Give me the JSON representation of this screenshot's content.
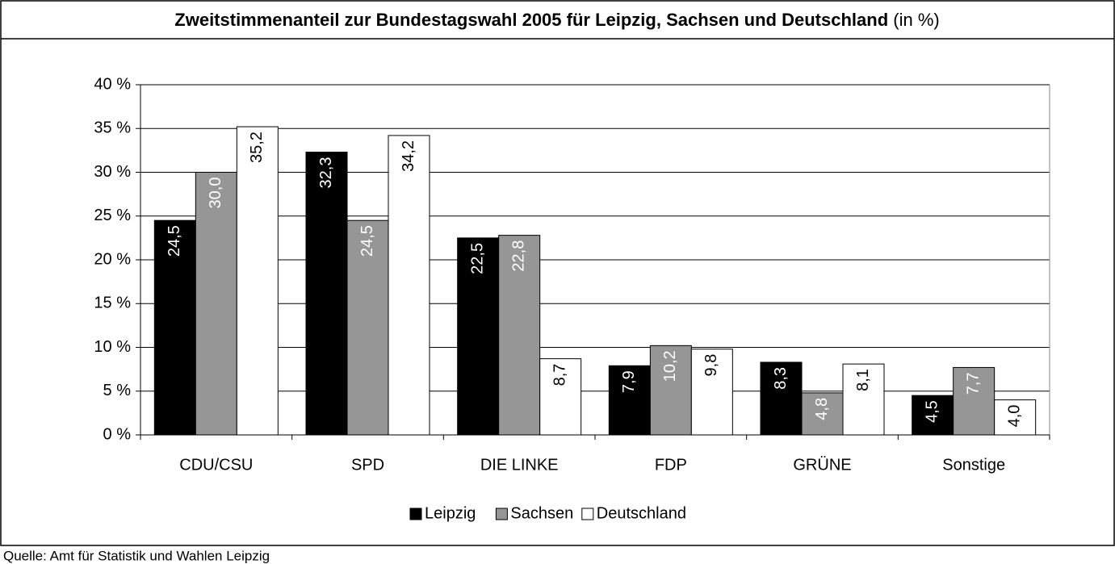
{
  "chart_data": {
    "type": "bar",
    "title": "Zweitstimmenanteil zur Bundestagswahl 2005 für Leipzig, Sachsen und Deutschland",
    "title_unit": "(in %)",
    "source": "Quelle: Amt für Statistik und Wahlen Leipzig",
    "categories": [
      "CDU/CSU",
      "SPD",
      "DIE LINKE",
      "FDP",
      "GRÜNE",
      "Sonstige"
    ],
    "series": [
      {
        "name": "Leipzig",
        "color": "#000000",
        "values": [
          24.5,
          32.3,
          22.5,
          7.9,
          8.3,
          4.5
        ],
        "value_labels": [
          "24,5",
          "32,3",
          "22,5",
          "7,9",
          "8,3",
          "4,5"
        ]
      },
      {
        "name": "Sachsen",
        "color": "#969696",
        "values": [
          30.0,
          24.5,
          22.8,
          10.2,
          4.8,
          7.7
        ],
        "value_labels": [
          "30,0",
          "24,5",
          "22,8",
          "10,2",
          "4,8",
          "7,7"
        ]
      },
      {
        "name": "Deutschland",
        "color": "#ffffff",
        "values": [
          35.2,
          34.2,
          8.7,
          9.8,
          8.1,
          4.0
        ],
        "value_labels": [
          "35,2",
          "34,2",
          "8,7",
          "9,8",
          "8,1",
          "4,0"
        ]
      }
    ],
    "ylim": [
      0,
      40
    ],
    "yticks": [
      {
        "value": 0,
        "label": "0 %"
      },
      {
        "value": 5,
        "label": "5 %"
      },
      {
        "value": 10,
        "label": "10 %"
      },
      {
        "value": 15,
        "label": "15 %"
      },
      {
        "value": 20,
        "label": "20 %"
      },
      {
        "value": 25,
        "label": "25 %"
      },
      {
        "value": 30,
        "label": "30 %"
      },
      {
        "value": 35,
        "label": "35 %"
      },
      {
        "value": 40,
        "label": "40 %"
      }
    ],
    "grid": true,
    "legend": "bottom"
  }
}
